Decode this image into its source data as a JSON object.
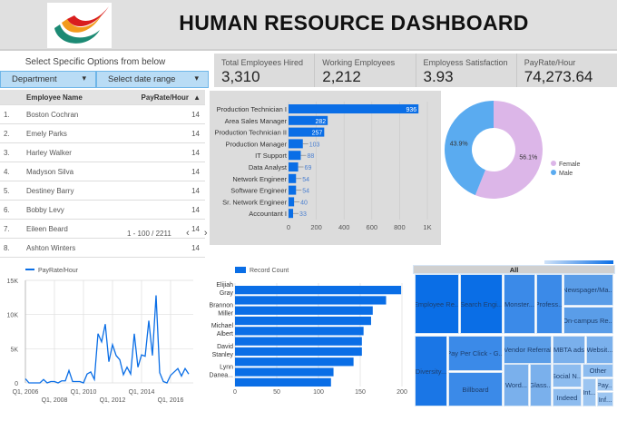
{
  "header": {
    "title": "HUMAN RESOURCE DASHBOARD",
    "logo": "company-logo"
  },
  "filters": {
    "caption": "Select Specific Options from below",
    "department": "Department",
    "date_range": "Select date range"
  },
  "kpis": [
    {
      "label": "Total Employees Hired",
      "value": "3,310"
    },
    {
      "label": "Working Employees",
      "value": "2,212"
    },
    {
      "label": "Employess Satisfaction",
      "value": "3.93"
    },
    {
      "label": "PayRate/Hour",
      "value": "74,273.64"
    }
  ],
  "table": {
    "columns": [
      "Employee Name",
      "PayRate/Hour"
    ],
    "sort_indicator": "▲",
    "rows": [
      {
        "n": "1.",
        "name": "Boston Cochran",
        "pay": "14"
      },
      {
        "n": "2.",
        "name": "Emely Parks",
        "pay": "14"
      },
      {
        "n": "3.",
        "name": "Harley Walker",
        "pay": "14"
      },
      {
        "n": "4.",
        "name": "Madyson Silva",
        "pay": "14"
      },
      {
        "n": "5.",
        "name": "Destiney Barry",
        "pay": "14"
      },
      {
        "n": "6.",
        "name": "Bobby Levy",
        "pay": "14"
      },
      {
        "n": "7.",
        "name": "Eileen Beard",
        "pay": "14"
      },
      {
        "n": "8.",
        "name": "Ashton Winters",
        "pay": "14"
      }
    ],
    "pagination": "1 - 100 / 2211"
  },
  "colors": {
    "primary": "#0a6ee6",
    "female": "#dcb6e8",
    "male": "#5aabf0",
    "panel": "#dcdcdc"
  },
  "chart_data": [
    {
      "type": "bar",
      "orientation": "horizontal",
      "categories": [
        "Production Technician I",
        "Area Sales Manager",
        "Production Technician II",
        "Production Manager",
        "IT Support",
        "Data Analyst",
        "Network Engineer",
        "Software Engineer",
        "Sr. Network Engineer",
        "Accountant I"
      ],
      "values": [
        936,
        282,
        257,
        103,
        88,
        69,
        54,
        54,
        40,
        33
      ],
      "xlim": [
        0,
        1000
      ],
      "xticks": [
        "0",
        "200",
        "400",
        "600",
        "800",
        "1K"
      ],
      "grid": true
    },
    {
      "type": "pie",
      "donut": true,
      "legend": "right",
      "slices": [
        {
          "name": "Female",
          "value": 56.1,
          "label": "56.1%"
        },
        {
          "name": "Male",
          "value": 43.9,
          "label": "43.9%"
        }
      ]
    },
    {
      "type": "line",
      "series": [
        {
          "name": "PayRate/Hour",
          "start": "Q1, 2006",
          "frequency": "quarterly",
          "values": [
            600,
            0,
            0,
            0,
            0,
            500,
            0,
            200,
            200,
            0,
            300,
            300,
            1800,
            200,
            200,
            200,
            0,
            1300,
            1600,
            500,
            7200,
            6000,
            8600,
            3100,
            5600,
            4000,
            3400,
            1200,
            2300,
            1300,
            7200,
            2300,
            4100,
            3900,
            9100,
            4000,
            12800,
            1500,
            200,
            0,
            1100,
            1600,
            2100,
            1000,
            2100,
            1300
          ]
        }
      ],
      "ylim": [
        0,
        15000
      ],
      "yticks": [
        "0",
        "5K",
        "10K",
        "15K"
      ],
      "xticks": [
        "Q1, 2006",
        "Q1, 2008",
        "Q1, 2010",
        "Q1, 2012",
        "Q1, 2014",
        "Q1, 2016"
      ],
      "legend": "top-left",
      "grid": true
    },
    {
      "type": "bar",
      "orientation": "horizontal",
      "series": [
        {
          "name": "Record Count"
        }
      ],
      "categories": [
        "Elijiah Gray",
        "",
        "Brannon Miller",
        "",
        "Michael Albert",
        "",
        "David Stanley",
        "",
        "Lynn Danea...",
        ""
      ],
      "values": [
        199,
        181,
        165,
        163,
        154,
        152,
        152,
        142,
        118,
        115
      ],
      "xlim": [
        0,
        200
      ],
      "xticks": [
        "0",
        "50",
        "100",
        "150",
        "200"
      ],
      "legend": "top-left",
      "grid": true
    },
    {
      "type": "treemap",
      "root": "All",
      "cells": [
        "Employee Re...",
        "Search Engi...",
        "Monster...",
        "Profess...",
        "Newspager/Ma...",
        "On-campus Re...",
        "Diversity...",
        "Pay Per Click - G...",
        "Billboard",
        "Vendor Referral",
        "MBTA ads",
        "Websit...",
        "Word...",
        "Glass...",
        "Social N...",
        "Indeed",
        "Other",
        "Int...",
        "Pay...",
        "Inf..."
      ]
    }
  ]
}
